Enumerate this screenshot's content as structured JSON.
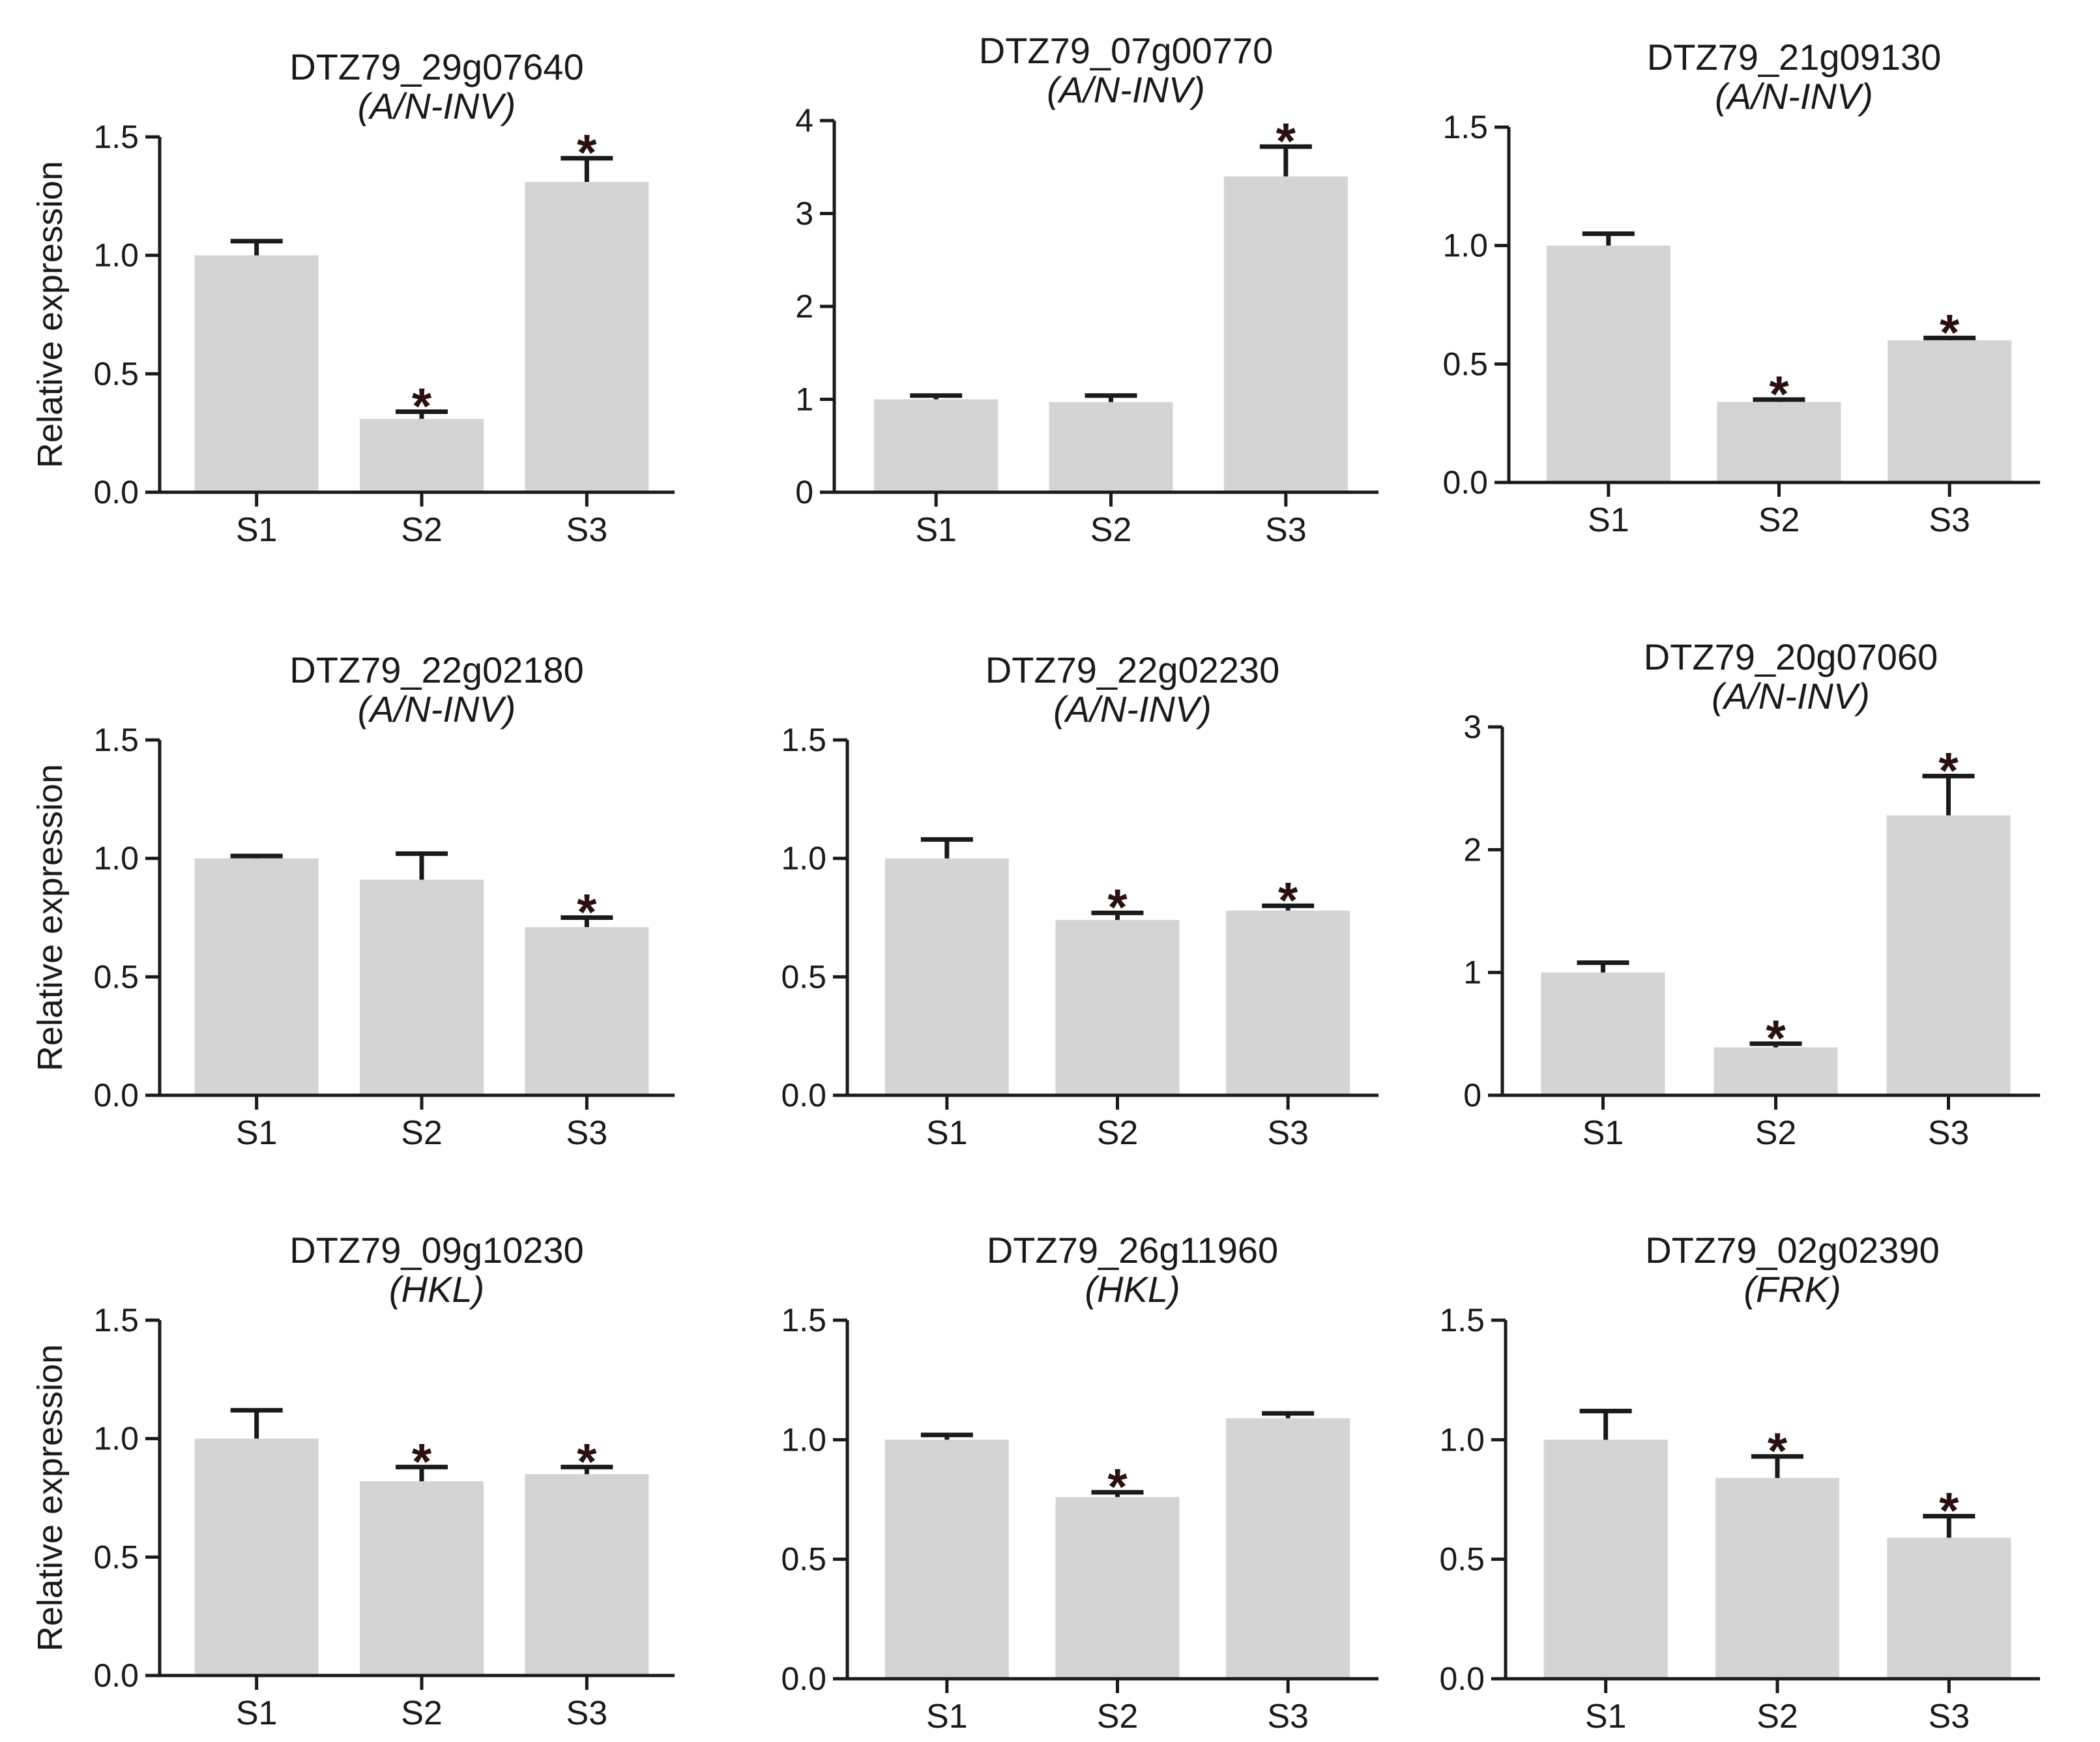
{
  "figure": {
    "ylabel": "Relative expression",
    "bar_color": "#d4d4d4",
    "axis_color": "#1a1a1a",
    "star_symbol": "*"
  },
  "chart_data": [
    {
      "type": "bar",
      "title": "DTZ79_29g07640",
      "subtitle": "(A/N-INV)",
      "categories": [
        "S1",
        "S2",
        "S3"
      ],
      "values": [
        1.0,
        0.31,
        1.31
      ],
      "errors": [
        0.06,
        0.03,
        0.1
      ],
      "significant": [
        false,
        true,
        true
      ],
      "ylim": [
        0,
        1.5
      ],
      "yticks": [
        "0.0",
        "0.5",
        "1.0",
        "1.5"
      ],
      "ylabel": "Relative expression"
    },
    {
      "type": "bar",
      "title": "DTZ79_07g00770",
      "subtitle": "(A/N-INV)",
      "categories": [
        "S1",
        "S2",
        "S3"
      ],
      "values": [
        1.0,
        0.97,
        3.4
      ],
      "errors": [
        0.04,
        0.07,
        0.32
      ],
      "significant": [
        false,
        false,
        true
      ],
      "ylim": [
        0,
        4
      ],
      "yticks": [
        "0",
        "1",
        "2",
        "3",
        "4"
      ],
      "ylabel": ""
    },
    {
      "type": "bar",
      "title": "DTZ79_21g09130",
      "subtitle": "(A/N-INV)",
      "categories": [
        "S1",
        "S2",
        "S3"
      ],
      "values": [
        1.0,
        0.34,
        0.6
      ],
      "errors": [
        0.05,
        0.01,
        0.01
      ],
      "significant": [
        false,
        true,
        true
      ],
      "ylim": [
        0,
        1.5
      ],
      "yticks": [
        "0.0",
        "0.5",
        "1.0",
        "1.5"
      ],
      "ylabel": ""
    },
    {
      "type": "bar",
      "title": "DTZ79_22g02180",
      "subtitle": "(A/N-INV)",
      "categories": [
        "S1",
        "S2",
        "S3"
      ],
      "values": [
        1.0,
        0.91,
        0.71
      ],
      "errors": [
        0.01,
        0.11,
        0.04
      ],
      "significant": [
        false,
        false,
        true
      ],
      "ylim": [
        0,
        1.5
      ],
      "yticks": [
        "0.0",
        "0.5",
        "1.0",
        "1.5"
      ],
      "ylabel": "Relative expression"
    },
    {
      "type": "bar",
      "title": "DTZ79_22g02230",
      "subtitle": "(A/N-INV)",
      "categories": [
        "S1",
        "S2",
        "S3"
      ],
      "values": [
        1.0,
        0.74,
        0.78
      ],
      "errors": [
        0.08,
        0.03,
        0.02
      ],
      "significant": [
        false,
        true,
        true
      ],
      "ylim": [
        0,
        1.5
      ],
      "yticks": [
        "0.0",
        "0.5",
        "1.0",
        "1.5"
      ],
      "ylabel": ""
    },
    {
      "type": "bar",
      "title": "DTZ79_20g07060",
      "subtitle": "(A/N-INV)",
      "categories": [
        "S1",
        "S2",
        "S3"
      ],
      "values": [
        1.0,
        0.39,
        2.28
      ],
      "errors": [
        0.08,
        0.03,
        0.32
      ],
      "significant": [
        false,
        true,
        true
      ],
      "ylim": [
        0,
        3
      ],
      "yticks": [
        "0",
        "1",
        "2",
        "3"
      ],
      "ylabel": ""
    },
    {
      "type": "bar",
      "title": "DTZ79_09g10230",
      "subtitle": "(HKL)",
      "categories": [
        "S1",
        "S2",
        "S3"
      ],
      "values": [
        1.0,
        0.82,
        0.85
      ],
      "errors": [
        0.12,
        0.06,
        0.03
      ],
      "significant": [
        false,
        true,
        true
      ],
      "ylim": [
        0,
        1.5
      ],
      "yticks": [
        "0.0",
        "0.5",
        "1.0",
        "1.5"
      ],
      "ylabel": "Relative expression"
    },
    {
      "type": "bar",
      "title": "DTZ79_26g11960",
      "subtitle": "(HKL)",
      "categories": [
        "S1",
        "S2",
        "S3"
      ],
      "values": [
        1.0,
        0.76,
        1.09
      ],
      "errors": [
        0.02,
        0.02,
        0.02
      ],
      "significant": [
        false,
        true,
        false
      ],
      "ylim": [
        0,
        1.5
      ],
      "yticks": [
        "0.0",
        "0.5",
        "1.0",
        "1.5"
      ],
      "ylabel": ""
    },
    {
      "type": "bar",
      "title": "DTZ79_02g02390",
      "subtitle": "(FRK)",
      "categories": [
        "S1",
        "S2",
        "S3"
      ],
      "values": [
        1.0,
        0.84,
        0.59
      ],
      "errors": [
        0.12,
        0.09,
        0.09
      ],
      "significant": [
        false,
        true,
        true
      ],
      "ylim": [
        0,
        1.5
      ],
      "yticks": [
        "0.0",
        "0.5",
        "1.0",
        "1.5"
      ],
      "ylabel": ""
    }
  ]
}
